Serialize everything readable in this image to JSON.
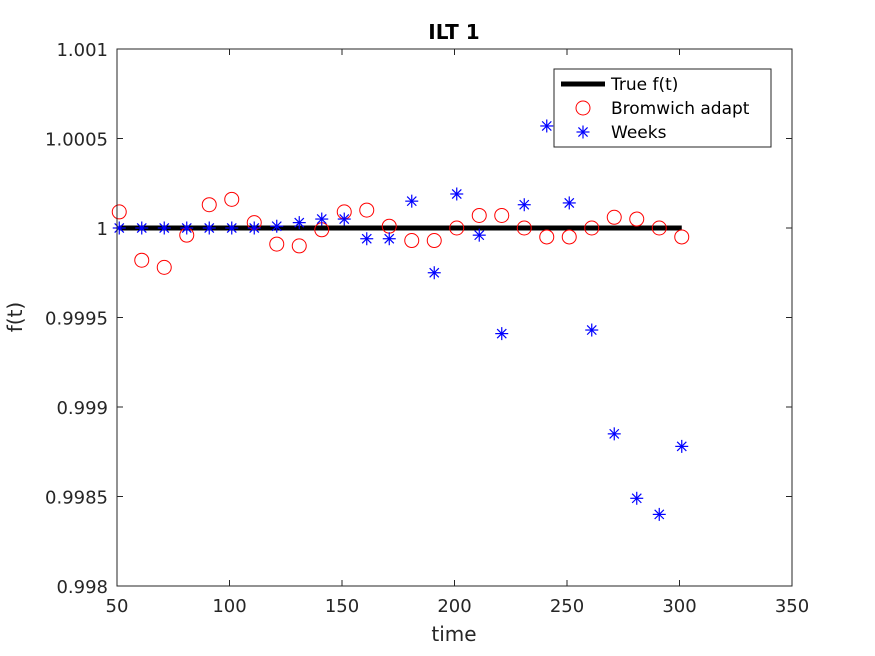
{
  "chart_data": {
    "type": "scatter",
    "title": "ILT 1",
    "xlabel": "time",
    "ylabel": "f(t)",
    "xlim": [
      50,
      350
    ],
    "ylim": [
      0.998,
      1.001
    ],
    "xticks": [
      50,
      100,
      150,
      200,
      250,
      300,
      350
    ],
    "yticks": [
      0.998,
      0.9985,
      0.999,
      0.9995,
      1,
      1.0005,
      1.001
    ],
    "xtick_labels": [
      "50",
      "100",
      "150",
      "200",
      "250",
      "300",
      "350"
    ],
    "ytick_labels": [
      "0.998",
      "0.9985",
      "0.999",
      "0.9995",
      "1",
      "1.0005",
      "1.001"
    ],
    "legend_position": "top-right",
    "series": [
      {
        "name": "True f(t)",
        "kind": "line",
        "color": "#000000",
        "x": [
          51,
          301
        ],
        "y": [
          1.0,
          1.0
        ]
      },
      {
        "name": "Bromwich adapt",
        "kind": "marker-circle",
        "color": "#ff0000",
        "x": [
          51,
          61,
          71,
          81,
          91,
          101,
          111,
          121,
          131,
          141,
          151,
          161,
          171,
          181,
          191,
          201,
          211,
          221,
          231,
          241,
          251,
          261,
          271,
          281,
          291,
          301
        ],
        "y": [
          1.00009,
          0.99982,
          0.99978,
          0.99996,
          1.00013,
          1.00016,
          1.00003,
          0.99991,
          0.9999,
          0.99999,
          1.00009,
          1.0001,
          1.00001,
          0.99993,
          0.99993,
          1.0,
          1.00007,
          1.00007,
          1.0,
          0.99995,
          0.99995,
          1.0,
          1.00006,
          1.00005,
          1.0,
          0.99995
        ]
      },
      {
        "name": "Weeks",
        "kind": "marker-asterisk",
        "color": "#0000ff",
        "x": [
          51,
          61,
          71,
          81,
          91,
          101,
          111,
          121,
          131,
          141,
          151,
          161,
          171,
          181,
          191,
          201,
          211,
          221,
          231,
          241,
          251,
          261,
          271,
          281,
          291,
          301
        ],
        "y": [
          1.0,
          1.0,
          1.0,
          1.0,
          1.0,
          1.0,
          1.0,
          1.00001,
          1.00003,
          1.00005,
          1.00005,
          0.99994,
          0.99994,
          1.00015,
          0.99975,
          1.00019,
          0.99996,
          0.99941,
          1.00013,
          1.00057,
          1.00014,
          0.99943,
          0.99885,
          0.99849,
          0.9984,
          0.99878
        ]
      }
    ]
  }
}
